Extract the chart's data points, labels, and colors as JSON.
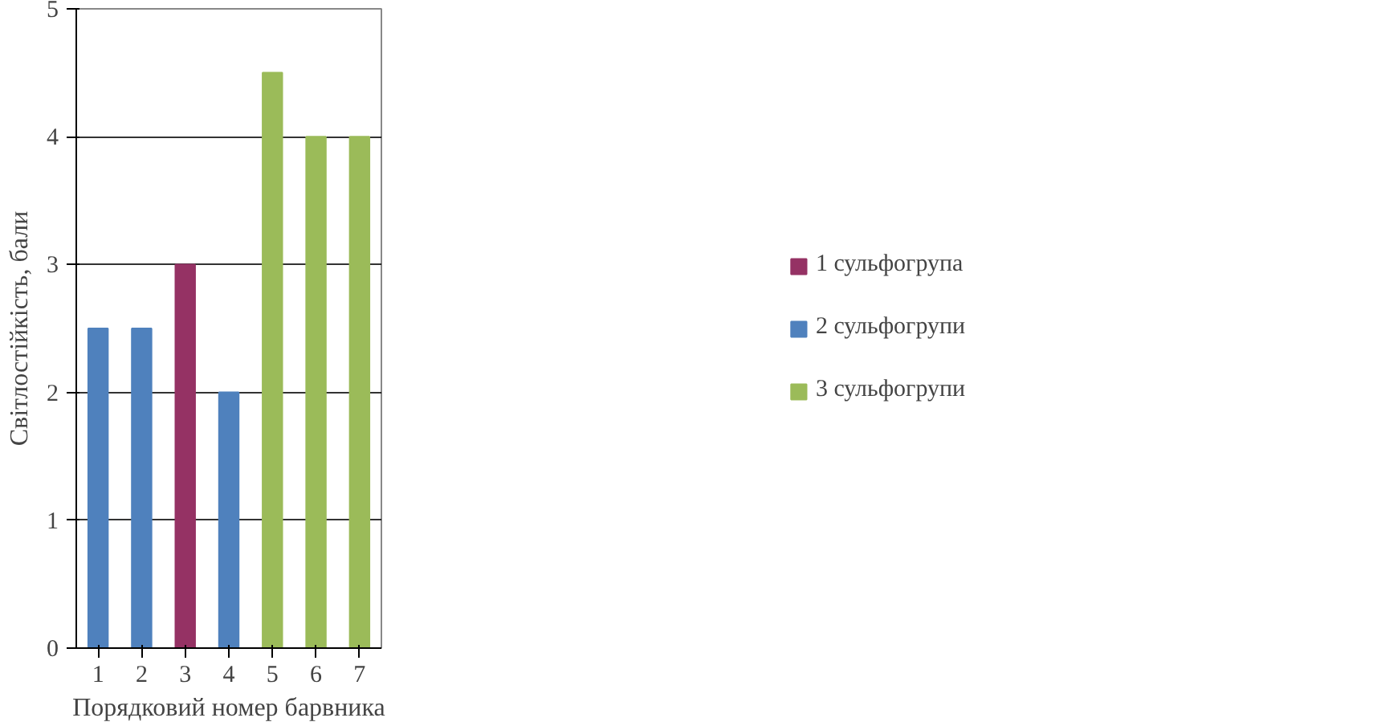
{
  "chart_data": {
    "type": "bar",
    "xlabel": "Порядковий номер барвника",
    "ylabel": "Світлостійкість, бали",
    "categories": [
      "1",
      "2",
      "3",
      "4",
      "5",
      "6",
      "7"
    ],
    "series": [
      {
        "name": "1 сульфогрупа",
        "color": "#953264",
        "values": [
          null,
          null,
          3,
          null,
          null,
          null,
          null
        ]
      },
      {
        "name": "2 сульфогрупи",
        "color": "#4f81bd",
        "values": [
          2.5,
          2.5,
          null,
          2,
          null,
          null,
          null
        ]
      },
      {
        "name": "3 сульфогрупи",
        "color": "#9bbb59",
        "values": [
          null,
          null,
          null,
          null,
          4.5,
          4,
          4
        ]
      }
    ],
    "ylim": [
      0,
      5
    ],
    "yticks": [
      0,
      1,
      2,
      3,
      4,
      5
    ],
    "grid": "y",
    "legend": "right"
  }
}
